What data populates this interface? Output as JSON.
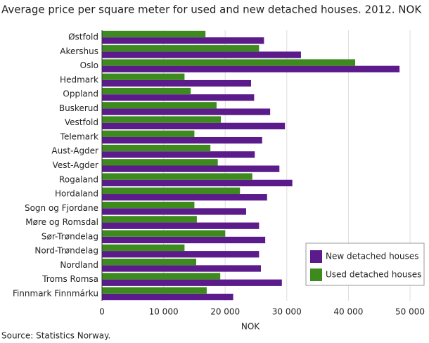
{
  "chart_data": {
    "type": "hbar",
    "title": "Average price per square meter for used and new detached houses. 2012. NOK",
    "x_label": "NOK",
    "source": "Source: Statistics Norway.",
    "categories": [
      "Østfold",
      "Akershus",
      "Oslo",
      "Hedmark",
      "Oppland",
      "Buskerud",
      "Vestfold",
      "Telemark",
      "Aust-Agder",
      "Vest-Agder",
      "Rogaland",
      "Hordaland",
      "Sogn og Fjordane",
      "Møre og Romsdal",
      "Sør-Trøndelag",
      "Nord-Trøndelag",
      "Nordland",
      "Troms Romsa",
      "Finnmark Finnmárku"
    ],
    "series": [
      {
        "name": "New detached houses",
        "color": "#5c1b8b",
        "values": [
          26300,
          32300,
          48300,
          24200,
          24700,
          27300,
          29700,
          26000,
          24800,
          28800,
          30900,
          26800,
          23400,
          25500,
          26500,
          25500,
          25800,
          29200,
          21300
        ]
      },
      {
        "name": "Used detached houses",
        "color": "#3d8b1f",
        "values": [
          16800,
          25500,
          41100,
          13400,
          14400,
          18600,
          19300,
          15000,
          17600,
          18800,
          24400,
          22400,
          15000,
          15400,
          20000,
          13400,
          15300,
          19200,
          17000
        ]
      }
    ],
    "xlim": [
      0,
      50000
    ],
    "xticks": [
      0,
      {
        "value": 10000,
        "label": "10 000"
      },
      {
        "value": 20000,
        "label": "20 000"
      },
      {
        "value": 30000,
        "label": "30 000"
      },
      {
        "value": 40000,
        "label": "40 000"
      },
      {
        "value": 50000,
        "label": "50 000"
      }
    ],
    "grid": true,
    "legend": "lower right"
  }
}
